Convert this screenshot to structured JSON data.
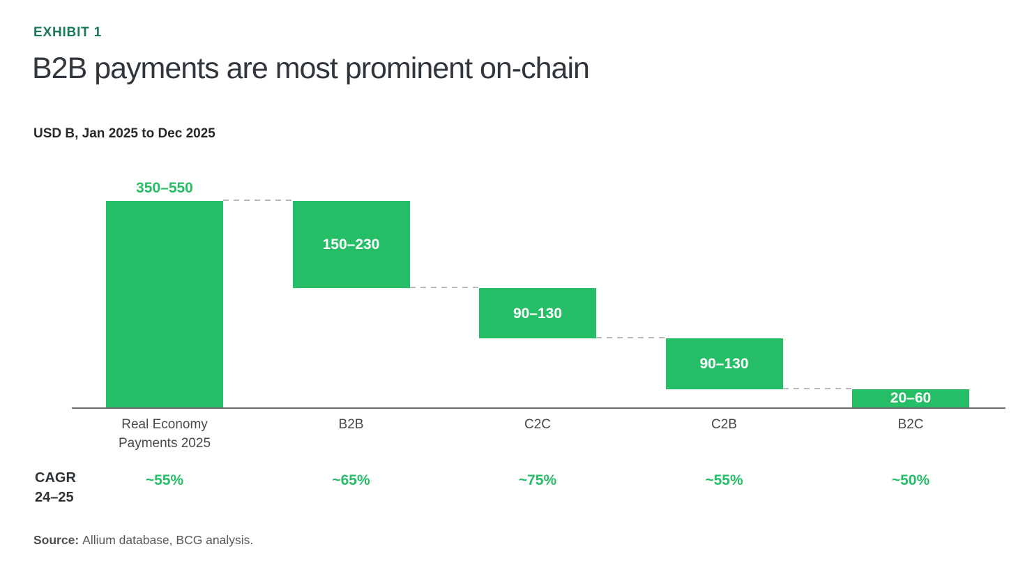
{
  "header": {
    "exhibit_label": "EXHIBIT 1",
    "title": "B2B payments are most prominent on-chain",
    "subtitle": "USD B, Jan 2025 to Dec 2025"
  },
  "cagr_row": {
    "label_line1": "CAGR",
    "label_line2": "24–25"
  },
  "source": {
    "prefix": "Source:",
    "text": "Allium database, BCG analysis."
  },
  "colors": {
    "bar_green": "#25bd66",
    "dark_green": "#197a56",
    "value_label_white": "#ffffff",
    "title_text": "#30363b",
    "category_text": "#45494d",
    "axis_line": "#6e6e6e",
    "connector_gray": "#b9b9b9",
    "source_text": "#55595d"
  },
  "chart_data": {
    "type": "waterfall",
    "title": "B2B payments are most prominent on-chain",
    "value_unit": "USD B",
    "period": "Jan 2025 to Dec 2025",
    "baseline": 0,
    "axis_max_estimate": 450,
    "grid": false,
    "legend": false,
    "connector_style": "dashed",
    "categories": [
      "Real Economy Payments 2025",
      "B2B",
      "C2C",
      "C2B",
      "B2C"
    ],
    "category_label_lines": [
      [
        "Real Economy",
        "Payments 2025"
      ],
      [
        "B2B"
      ],
      [
        "C2C"
      ],
      [
        "C2B"
      ],
      [
        "B2C"
      ]
    ],
    "cagr_row_label": "CAGR 24–25",
    "segments": [
      {
        "category": "Real Economy Payments 2025",
        "range_label": "350–550",
        "range_min": 350,
        "range_max": 550,
        "mid_estimate": 450,
        "cagr_24_25": "~55%",
        "is_total": true,
        "value_label_position": "above-bar",
        "value_label_color": "green"
      },
      {
        "category": "B2B",
        "range_label": "150–230",
        "range_min": 150,
        "range_max": 230,
        "mid_estimate": 190,
        "cagr_24_25": "~65%",
        "is_total": false,
        "value_label_position": "inside-bar",
        "value_label_color": "white"
      },
      {
        "category": "C2C",
        "range_label": "90–130",
        "range_min": 90,
        "range_max": 130,
        "mid_estimate": 110,
        "cagr_24_25": "~75%",
        "is_total": false,
        "value_label_position": "inside-bar",
        "value_label_color": "white"
      },
      {
        "category": "C2B",
        "range_label": "90–130",
        "range_min": 90,
        "range_max": 130,
        "mid_estimate": 110,
        "cagr_24_25": "~55%",
        "is_total": false,
        "value_label_position": "inside-bar",
        "value_label_color": "white"
      },
      {
        "category": "B2C",
        "range_label": "20–60",
        "range_min": 20,
        "range_max": 60,
        "mid_estimate": 40,
        "cagr_24_25": "~50%",
        "is_total": false,
        "value_label_position": "inside-bar",
        "value_label_color": "white"
      }
    ]
  }
}
